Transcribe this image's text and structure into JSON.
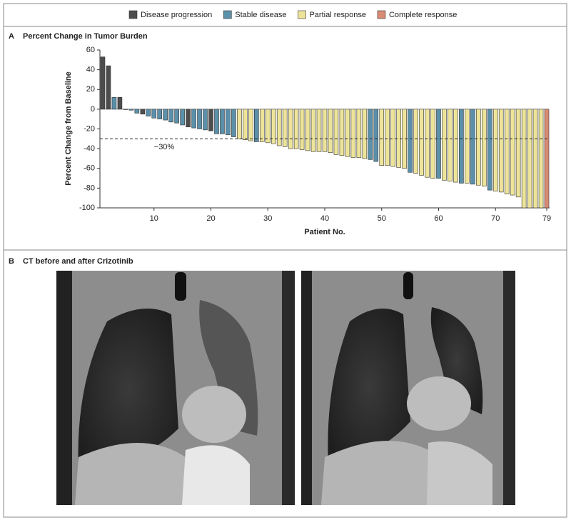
{
  "chart_data": {
    "type": "bar",
    "panel_label": "A",
    "title": "Percent Change in Tumor Burden",
    "y_label": "Percent Change from Baseline",
    "x_label": "Patient No.",
    "legend": [
      {
        "name": "Disease progression",
        "color": "#4d4d4d"
      },
      {
        "name": "Stable disease",
        "color": "#5b90aa"
      },
      {
        "name": "Partial response",
        "color": "#ede49a"
      },
      {
        "name": "Complete response",
        "color": "#d98a72"
      }
    ],
    "x": [
      1,
      2,
      3,
      4,
      5,
      6,
      7,
      8,
      9,
      10,
      11,
      12,
      13,
      14,
      15,
      16,
      17,
      18,
      19,
      20,
      21,
      22,
      23,
      24,
      25,
      26,
      27,
      28,
      29,
      30,
      31,
      32,
      33,
      34,
      35,
      36,
      37,
      38,
      39,
      40,
      41,
      42,
      43,
      44,
      45,
      46,
      47,
      48,
      49,
      50,
      51,
      52,
      53,
      54,
      55,
      56,
      57,
      58,
      59,
      60,
      61,
      62,
      63,
      64,
      65,
      66,
      67,
      68,
      69,
      70,
      71,
      72,
      73,
      74,
      75,
      76,
      77,
      78,
      79
    ],
    "values": [
      53,
      44,
      12,
      12,
      0,
      -1,
      -4,
      -5,
      -7,
      -9,
      -10,
      -11,
      -13,
      -14,
      -16,
      -18,
      -19,
      -20,
      -21,
      -22,
      -25,
      -25,
      -26,
      -28,
      -30,
      -31,
      -32,
      -33,
      -33,
      -34,
      -35,
      -37,
      -38,
      -40,
      -40,
      -41,
      -42,
      -43,
      -43,
      -43,
      -44,
      -46,
      -47,
      -48,
      -49,
      -49,
      -50,
      -51,
      -53,
      -57,
      -57,
      -58,
      -59,
      -60,
      -64,
      -65,
      -67,
      -69,
      -70,
      -70,
      -72,
      -73,
      -74,
      -75,
      -75,
      -76,
      -77,
      -78,
      -82,
      -83,
      -84,
      -86,
      -87,
      -89,
      -100,
      -100,
      -100,
      -100,
      -100
    ],
    "groups": [
      0,
      0,
      1,
      0,
      1,
      1,
      1,
      0,
      1,
      1,
      1,
      1,
      1,
      1,
      1,
      0,
      1,
      1,
      1,
      0,
      1,
      1,
      1,
      1,
      2,
      2,
      2,
      1,
      2,
      2,
      2,
      2,
      2,
      2,
      2,
      2,
      2,
      2,
      2,
      2,
      2,
      2,
      2,
      2,
      2,
      2,
      2,
      1,
      1,
      2,
      2,
      2,
      2,
      2,
      1,
      2,
      2,
      2,
      2,
      1,
      2,
      2,
      2,
      1,
      2,
      1,
      2,
      2,
      1,
      2,
      2,
      2,
      2,
      2,
      2,
      2,
      2,
      2,
      3
    ],
    "xlim": [
      0.5,
      79.5
    ],
    "xticks": [
      10,
      20,
      30,
      40,
      50,
      60,
      70,
      79
    ],
    "ylim": [
      -100,
      60
    ],
    "yticks": [
      -100,
      -80,
      -60,
      -40,
      -20,
      0,
      20,
      40,
      60
    ],
    "threshold": {
      "value": -30,
      "label": "−30%"
    }
  },
  "panel_b": {
    "label": "B",
    "title": "CT before and after Crizotinib"
  }
}
